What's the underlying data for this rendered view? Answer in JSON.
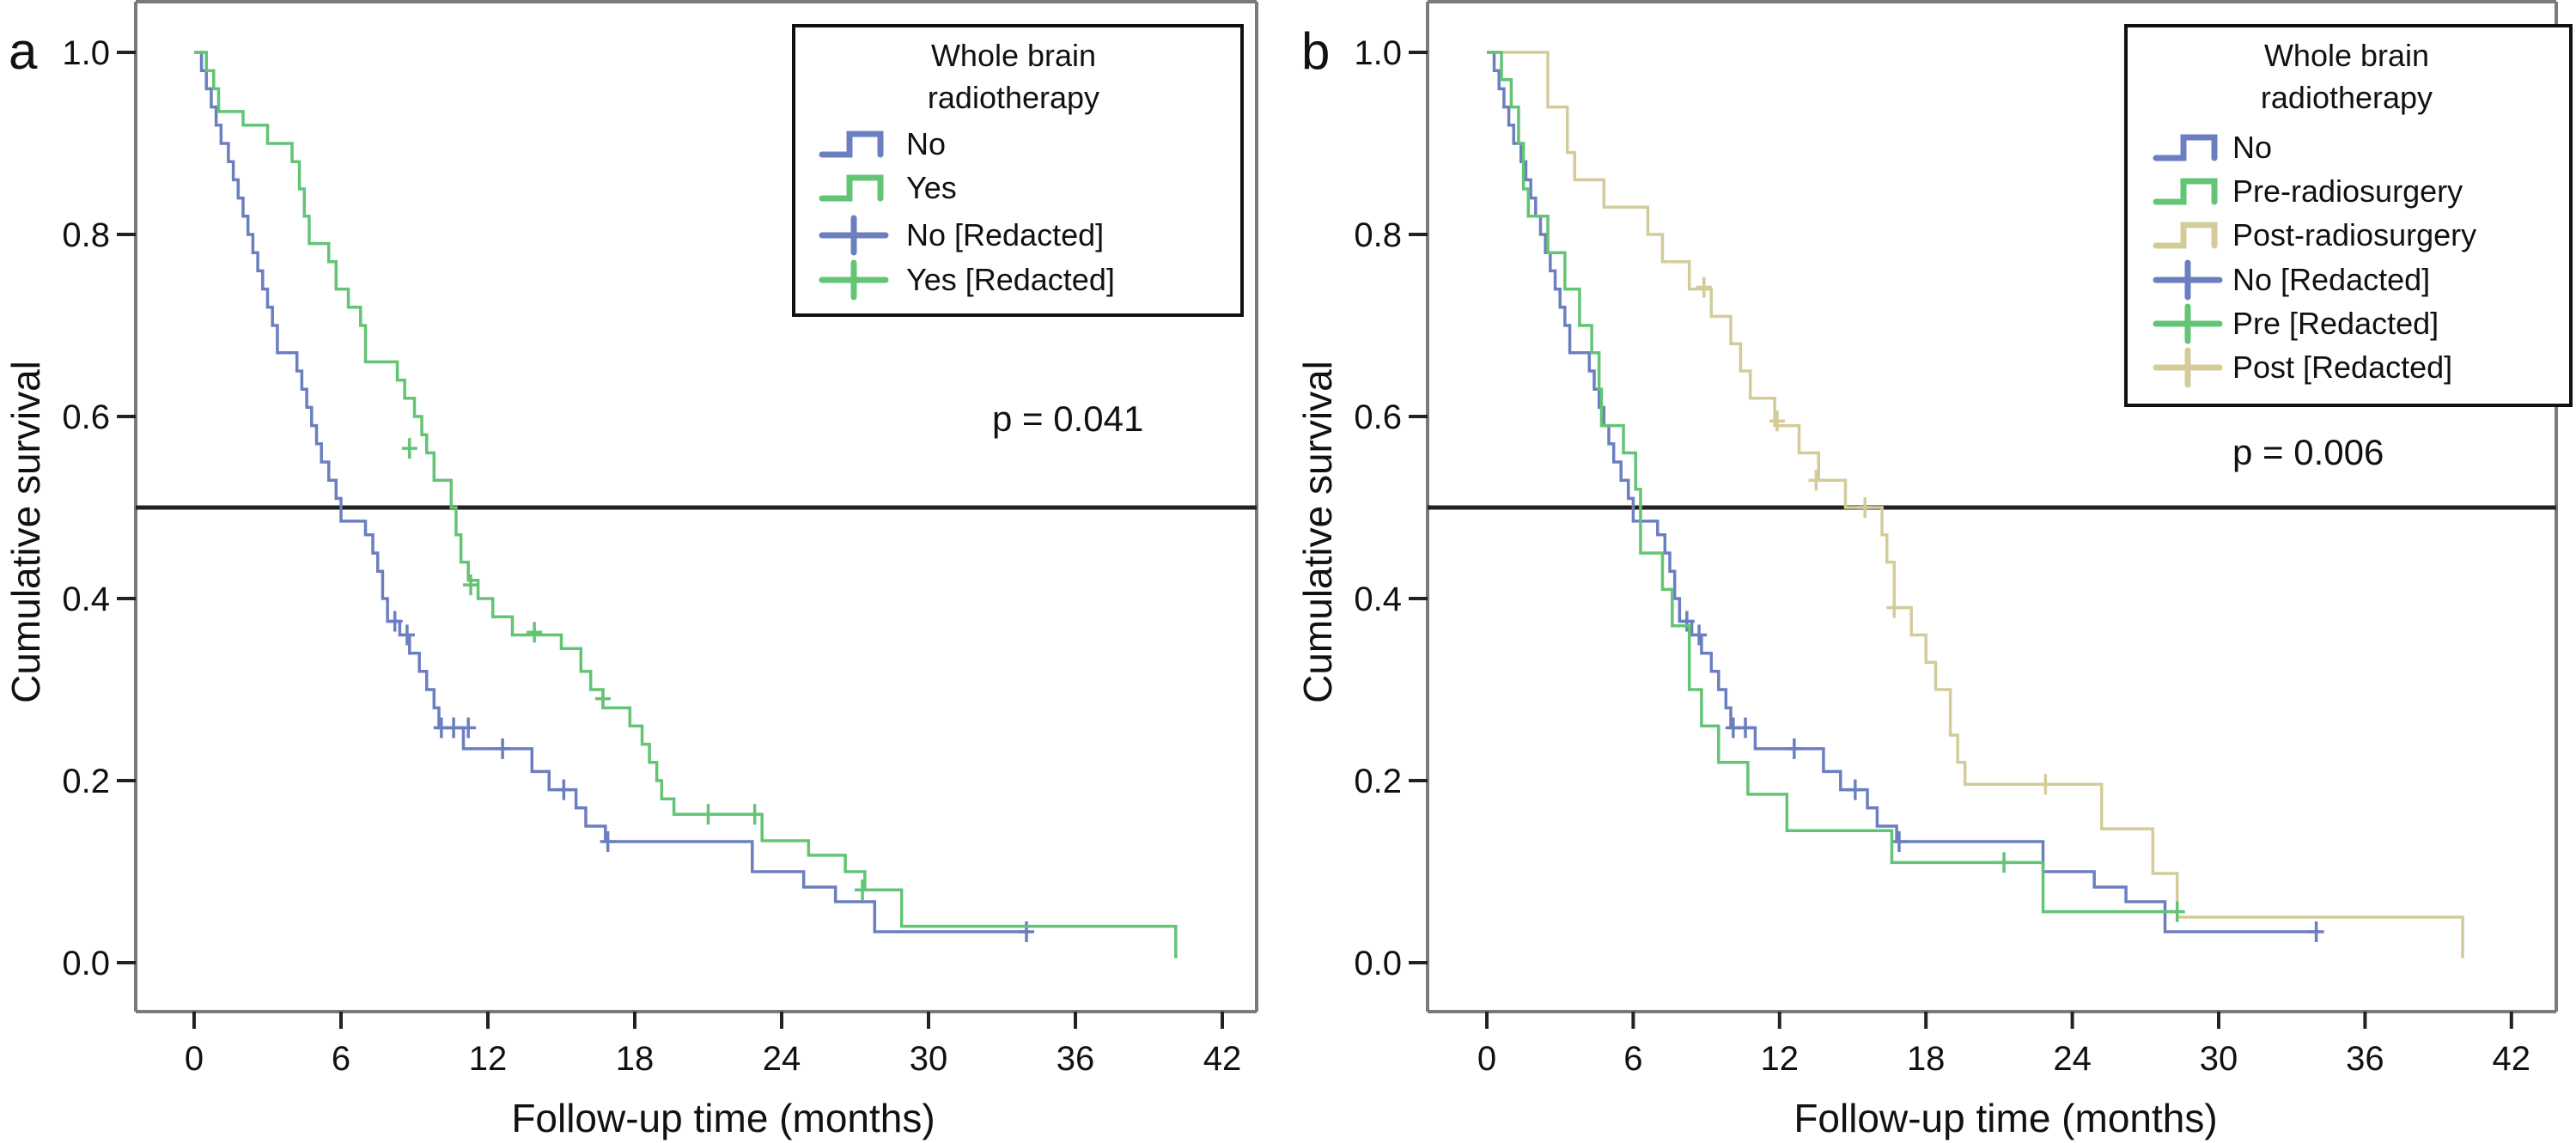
{
  "chart_data": [
    {
      "type": "line",
      "subtype": "kaplan-meier",
      "panel_label": "a",
      "xlabel": "Follow-up time (months)",
      "ylabel": "Cumulative survival",
      "xlim": [
        -3,
        44
      ],
      "ylim": [
        0,
        1
      ],
      "xticks": [
        0,
        6,
        12,
        18,
        24,
        30,
        36,
        42
      ],
      "xtick_labels": [
        "0",
        "6",
        "12",
        "18",
        "24",
        "30",
        "36",
        "42"
      ],
      "yticks": [
        0,
        0.2,
        0.4,
        0.6,
        0.8,
        1.0
      ],
      "ytick_labels": [
        "0.0",
        "0.2",
        "0.4",
        "0.6",
        "0.8",
        "1.0"
      ],
      "reference_line_y": 0.5,
      "annotation": "p = 0.041",
      "legend": {
        "title_lines": [
          "Whole brain",
          "radiotherapy"
        ],
        "position": "top-right",
        "entries": [
          {
            "label": "No",
            "kind": "step",
            "color": "#6b7fc0"
          },
          {
            "label": "Yes",
            "kind": "step",
            "color": "#62c474"
          },
          {
            "label": "No [Redacted]",
            "kind": "censor",
            "color": "#6b7fc0"
          },
          {
            "label": "Yes [Redacted]",
            "kind": "censor",
            "color": "#62c474"
          }
        ]
      },
      "series": [
        {
          "name": "No",
          "color": "#6b7fc0",
          "end": 34.1,
          "steps": [
            [
              0,
              1.0
            ],
            [
              0.3,
              0.98
            ],
            [
              0.5,
              0.96
            ],
            [
              0.7,
              0.94
            ],
            [
              0.9,
              0.92
            ],
            [
              1.1,
              0.9
            ],
            [
              1.4,
              0.88
            ],
            [
              1.6,
              0.86
            ],
            [
              1.8,
              0.84
            ],
            [
              2.0,
              0.82
            ],
            [
              2.2,
              0.8
            ],
            [
              2.4,
              0.78
            ],
            [
              2.6,
              0.76
            ],
            [
              2.8,
              0.74
            ],
            [
              3.0,
              0.72
            ],
            [
              3.2,
              0.7
            ],
            [
              3.4,
              0.67
            ],
            [
              4.2,
              0.65
            ],
            [
              4.4,
              0.63
            ],
            [
              4.6,
              0.61
            ],
            [
              4.8,
              0.59
            ],
            [
              5.0,
              0.57
            ],
            [
              5.2,
              0.55
            ],
            [
              5.5,
              0.53
            ],
            [
              5.8,
              0.51
            ],
            [
              6.0,
              0.485
            ],
            [
              7.0,
              0.47
            ],
            [
              7.3,
              0.45
            ],
            [
              7.5,
              0.43
            ],
            [
              7.7,
              0.4
            ],
            [
              7.9,
              0.375
            ],
            [
              8.4,
              0.36
            ],
            [
              8.8,
              0.34
            ],
            [
              9.2,
              0.32
            ],
            [
              9.5,
              0.3
            ],
            [
              9.8,
              0.28
            ],
            [
              10.0,
              0.258
            ],
            [
              11.0,
              0.235
            ],
            [
              13.8,
              0.21
            ],
            [
              14.5,
              0.19
            ],
            [
              15.6,
              0.17
            ],
            [
              16.0,
              0.15
            ],
            [
              16.8,
              0.133
            ],
            [
              22.8,
              0.1
            ],
            [
              24.9,
              0.083
            ],
            [
              26.2,
              0.067
            ],
            [
              27.8,
              0.034
            ]
          ],
          "censored": [
            [
              8.2,
              0.375
            ],
            [
              8.7,
              0.36
            ],
            [
              10.1,
              0.258
            ],
            [
              10.6,
              0.258
            ],
            [
              11.2,
              0.258
            ],
            [
              12.6,
              0.235
            ],
            [
              15.1,
              0.19
            ],
            [
              16.9,
              0.133
            ],
            [
              34.0,
              0.034
            ]
          ]
        },
        {
          "name": "Yes",
          "color": "#62c474",
          "end": 40.1,
          "steps": [
            [
              0,
              1.0
            ],
            [
              0.5,
              0.98
            ],
            [
              0.8,
              0.96
            ],
            [
              1.0,
              0.935
            ],
            [
              2.0,
              0.92
            ],
            [
              3.0,
              0.9
            ],
            [
              4.0,
              0.88
            ],
            [
              4.3,
              0.85
            ],
            [
              4.5,
              0.82
            ],
            [
              4.7,
              0.79
            ],
            [
              5.5,
              0.77
            ],
            [
              5.8,
              0.74
            ],
            [
              6.3,
              0.72
            ],
            [
              6.8,
              0.7
            ],
            [
              7.0,
              0.66
            ],
            [
              8.3,
              0.64
            ],
            [
              8.6,
              0.62
            ],
            [
              9.0,
              0.6
            ],
            [
              9.3,
              0.58
            ],
            [
              9.5,
              0.56
            ],
            [
              9.8,
              0.53
            ],
            [
              10.5,
              0.5
            ],
            [
              10.7,
              0.47
            ],
            [
              10.9,
              0.44
            ],
            [
              11.2,
              0.42
            ],
            [
              11.6,
              0.4
            ],
            [
              12.2,
              0.38
            ],
            [
              13.0,
              0.36
            ],
            [
              15.0,
              0.345
            ],
            [
              15.8,
              0.32
            ],
            [
              16.2,
              0.3
            ],
            [
              16.7,
              0.28
            ],
            [
              17.8,
              0.26
            ],
            [
              18.3,
              0.24
            ],
            [
              18.6,
              0.22
            ],
            [
              18.9,
              0.2
            ],
            [
              19.1,
              0.18
            ],
            [
              19.6,
              0.163
            ],
            [
              23.2,
              0.134
            ],
            [
              25.1,
              0.118
            ],
            [
              26.6,
              0.1
            ],
            [
              27.4,
              0.08
            ],
            [
              28.9,
              0.04
            ],
            [
              40.1,
              0.005
            ]
          ],
          "censored": [
            [
              8.8,
              0.565
            ],
            [
              11.3,
              0.415
            ],
            [
              13.9,
              0.363
            ],
            [
              16.7,
              0.29
            ],
            [
              21.0,
              0.163
            ],
            [
              22.9,
              0.163
            ],
            [
              27.3,
              0.08
            ]
          ]
        }
      ]
    },
    {
      "type": "line",
      "subtype": "kaplan-meier",
      "panel_label": "b",
      "xlabel": "Follow-up time (months)",
      "ylabel": "Cumulative survival",
      "xlim": [
        -3,
        44
      ],
      "ylim": [
        0,
        1
      ],
      "xticks": [
        0,
        6,
        12,
        18,
        24,
        30,
        36,
        42
      ],
      "xtick_labels": [
        "0",
        "6",
        "12",
        "18",
        "24",
        "30",
        "36",
        "42"
      ],
      "yticks": [
        0,
        0.2,
        0.4,
        0.6,
        0.8,
        1.0
      ],
      "ytick_labels": [
        "0.0",
        "0.2",
        "0.4",
        "0.6",
        "0.8",
        "1.0"
      ],
      "reference_line_y": 0.5,
      "annotation": "p = 0.006",
      "legend": {
        "title_lines": [
          "Whole brain",
          "radiotherapy"
        ],
        "position": "top-right",
        "entries": [
          {
            "label": "No",
            "kind": "step",
            "color": "#6b7fc0"
          },
          {
            "label": "Pre-radiosurgery",
            "kind": "step",
            "color": "#62c474"
          },
          {
            "label": "Post-radiosurgery",
            "kind": "step",
            "color": "#d3cc9a"
          },
          {
            "label": "No [Redacted]",
            "kind": "censor",
            "color": "#6b7fc0"
          },
          {
            "label": "Pre [Redacted]",
            "kind": "censor",
            "color": "#62c474"
          },
          {
            "label": "Post [Redacted]",
            "kind": "censor",
            "color": "#d3cc9a"
          }
        ]
      },
      "series": [
        {
          "name": "Post-radiosurgery",
          "color": "#d3cc9a",
          "end": 40.0,
          "steps": [
            [
              0,
              1.0
            ],
            [
              2.5,
              0.94
            ],
            [
              3.3,
              0.89
            ],
            [
              3.6,
              0.86
            ],
            [
              4.8,
              0.83
            ],
            [
              6.6,
              0.8
            ],
            [
              7.2,
              0.77
            ],
            [
              8.3,
              0.74
            ],
            [
              9.2,
              0.71
            ],
            [
              10.0,
              0.68
            ],
            [
              10.4,
              0.65
            ],
            [
              10.8,
              0.62
            ],
            [
              11.8,
              0.59
            ],
            [
              12.8,
              0.56
            ],
            [
              13.6,
              0.53
            ],
            [
              14.7,
              0.5
            ],
            [
              16.2,
              0.47
            ],
            [
              16.4,
              0.44
            ],
            [
              16.7,
              0.39
            ],
            [
              17.4,
              0.36
            ],
            [
              18.0,
              0.33
            ],
            [
              18.4,
              0.3
            ],
            [
              19.0,
              0.25
            ],
            [
              19.3,
              0.22
            ],
            [
              19.6,
              0.196
            ],
            [
              25.2,
              0.147
            ],
            [
              27.3,
              0.098
            ],
            [
              28.3,
              0.05
            ],
            [
              40.0,
              0.005
            ]
          ],
          "censored": [
            [
              8.9,
              0.742
            ],
            [
              11.9,
              0.595
            ],
            [
              13.5,
              0.53
            ],
            [
              15.5,
              0.5
            ],
            [
              16.7,
              0.39
            ],
            [
              22.9,
              0.196
            ]
          ]
        },
        {
          "name": "No",
          "color": "#6b7fc0",
          "end": 34.1,
          "steps": [
            [
              0,
              1.0
            ],
            [
              0.3,
              0.98
            ],
            [
              0.5,
              0.96
            ],
            [
              0.7,
              0.94
            ],
            [
              0.9,
              0.92
            ],
            [
              1.1,
              0.9
            ],
            [
              1.4,
              0.88
            ],
            [
              1.6,
              0.86
            ],
            [
              1.8,
              0.84
            ],
            [
              2.0,
              0.82
            ],
            [
              2.2,
              0.8
            ],
            [
              2.4,
              0.78
            ],
            [
              2.6,
              0.76
            ],
            [
              2.8,
              0.74
            ],
            [
              3.0,
              0.72
            ],
            [
              3.2,
              0.7
            ],
            [
              3.4,
              0.67
            ],
            [
              4.2,
              0.65
            ],
            [
              4.4,
              0.63
            ],
            [
              4.6,
              0.61
            ],
            [
              4.8,
              0.59
            ],
            [
              5.0,
              0.57
            ],
            [
              5.2,
              0.55
            ],
            [
              5.5,
              0.53
            ],
            [
              5.8,
              0.51
            ],
            [
              6.0,
              0.485
            ],
            [
              7.0,
              0.47
            ],
            [
              7.3,
              0.45
            ],
            [
              7.5,
              0.43
            ],
            [
              7.7,
              0.4
            ],
            [
              7.9,
              0.375
            ],
            [
              8.4,
              0.36
            ],
            [
              8.8,
              0.34
            ],
            [
              9.2,
              0.32
            ],
            [
              9.5,
              0.3
            ],
            [
              9.8,
              0.28
            ],
            [
              10.0,
              0.258
            ],
            [
              11.0,
              0.235
            ],
            [
              13.8,
              0.21
            ],
            [
              14.5,
              0.19
            ],
            [
              15.6,
              0.17
            ],
            [
              16.0,
              0.15
            ],
            [
              16.8,
              0.133
            ],
            [
              22.8,
              0.1
            ],
            [
              24.9,
              0.083
            ],
            [
              26.2,
              0.067
            ],
            [
              27.8,
              0.034
            ]
          ],
          "censored": [
            [
              8.2,
              0.375
            ],
            [
              8.7,
              0.36
            ],
            [
              10.1,
              0.258
            ],
            [
              10.6,
              0.258
            ],
            [
              12.6,
              0.235
            ],
            [
              15.1,
              0.19
            ],
            [
              16.9,
              0.133
            ],
            [
              34.0,
              0.034
            ]
          ]
        },
        {
          "name": "Pre-radiosurgery",
          "color": "#62c474",
          "end": 28.4,
          "steps": [
            [
              0,
              1.0
            ],
            [
              0.6,
              0.97
            ],
            [
              1.0,
              0.94
            ],
            [
              1.3,
              0.9
            ],
            [
              1.5,
              0.85
            ],
            [
              1.7,
              0.82
            ],
            [
              2.5,
              0.78
            ],
            [
              3.2,
              0.74
            ],
            [
              3.8,
              0.7
            ],
            [
              4.3,
              0.67
            ],
            [
              4.6,
              0.63
            ],
            [
              4.7,
              0.59
            ],
            [
              5.6,
              0.56
            ],
            [
              6.1,
              0.52
            ],
            [
              6.3,
              0.45
            ],
            [
              7.2,
              0.41
            ],
            [
              7.6,
              0.37
            ],
            [
              8.3,
              0.3
            ],
            [
              8.8,
              0.26
            ],
            [
              9.5,
              0.22
            ],
            [
              10.7,
              0.185
            ],
            [
              12.3,
              0.145
            ],
            [
              16.6,
              0.11
            ],
            [
              22.8,
              0.056
            ]
          ],
          "censored": [
            [
              21.2,
              0.11
            ],
            [
              28.3,
              0.056
            ]
          ]
        }
      ]
    }
  ]
}
